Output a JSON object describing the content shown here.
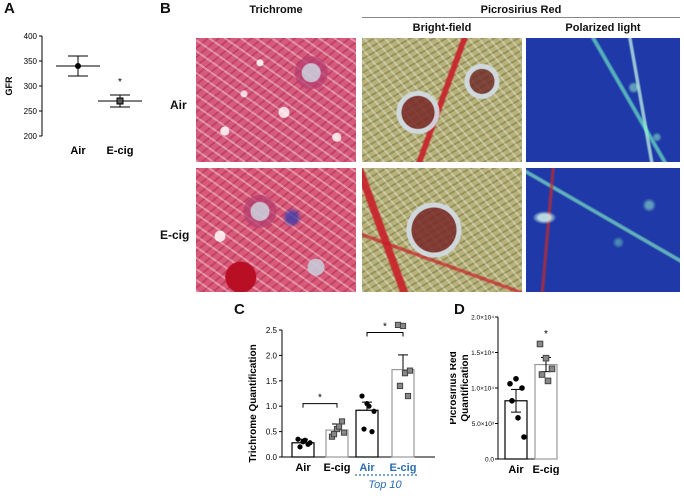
{
  "panels": {
    "a": {
      "letter": "A"
    },
    "b": {
      "letter": "B"
    },
    "c": {
      "letter": "C"
    },
    "d": {
      "letter": "D"
    }
  },
  "histology": {
    "col_trichrome": "Trichrome",
    "col_picrosirius": "Picrosirius Red",
    "sub_brightfield": "Bright-field",
    "sub_polarized": "Polarized light",
    "row_air": "Air",
    "row_ecig": "E-cig"
  },
  "chart_data": [
    {
      "panel": "A",
      "type": "scatter",
      "ylabel": "GFR",
      "categories": [
        "Air",
        "E-cig"
      ],
      "ylim": [
        200,
        400
      ],
      "yticks": [
        200,
        250,
        300,
        350,
        400
      ],
      "means": [
        340,
        270
      ],
      "sem": [
        20,
        12
      ],
      "annotations": [
        {
          "text": "*",
          "category": "E-cig"
        }
      ]
    },
    {
      "panel": "C",
      "type": "bar",
      "ylabel": "Trichrome Quantification",
      "categories": [
        "Air",
        "E-cig",
        "Air",
        "E-cig"
      ],
      "group_label": "Top 10",
      "ylim": [
        0,
        2.5
      ],
      "yticks": [
        0.0,
        0.5,
        1.0,
        1.5,
        2.0,
        2.5
      ],
      "values": [
        0.28,
        0.53,
        0.92,
        1.72
      ],
      "sem": [
        0.07,
        0.12,
        0.16,
        0.29
      ],
      "points": [
        [
          0.35,
          0.3,
          0.25,
          0.2,
          0.33,
          0.28
        ],
        [
          0.4,
          0.55,
          0.7,
          0.45,
          0.6,
          0.48
        ],
        [
          1.2,
          1.05,
          0.5,
          0.55,
          1.0,
          0.9
        ],
        [
          2.6,
          2.58,
          1.2,
          1.4,
          1.65,
          1.7
        ]
      ],
      "annotations": [
        {
          "text": "*",
          "between": [
            "Air",
            "E-cig"
          ]
        },
        {
          "text": "*",
          "between": [
            "Air (Top 10)",
            "E-cig (Top 10)"
          ]
        }
      ]
    },
    {
      "panel": "D",
      "type": "bar",
      "ylabel": "Picrosirius Red Quantification",
      "categories": [
        "Air",
        "E-cig"
      ],
      "ylim": [
        0,
        20000
      ],
      "yticks": [
        "0.0",
        "5.0×10³",
        "1.0×10⁴",
        "1.5×10⁴",
        "2.0×10⁴"
      ],
      "values": [
        8200,
        13300
      ],
      "sem": [
        1600,
        1000
      ],
      "points": [
        [
          10600,
          11300,
          10000,
          8200,
          5800,
          3100
        ],
        [
          16200,
          14200,
          12700,
          11900,
          11000
        ]
      ],
      "annotations": [
        {
          "text": "*",
          "category": "E-cig"
        }
      ]
    }
  ]
}
